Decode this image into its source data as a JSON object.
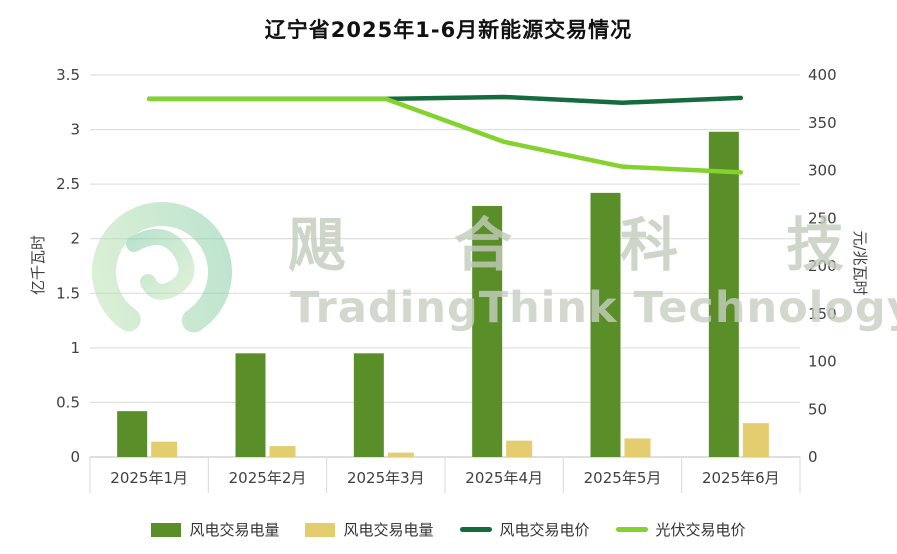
{
  "page": {
    "background": "#ffffff"
  },
  "chart_data": {
    "type": "combo",
    "title": "辽宁省2025年1-6月新能源交易情况",
    "categories": [
      "2025年1月",
      "2025年2月",
      "2025年3月",
      "2025年4月",
      "2025年5月",
      "2025年6月"
    ],
    "left_axis": {
      "label": "亿千瓦时",
      "min": 0,
      "max": 3.5,
      "ticks": [
        "0",
        "0.5",
        "1",
        "1.5",
        "2",
        "2.5",
        "3",
        "3.5"
      ]
    },
    "right_axis": {
      "label": "元/兆瓦时",
      "min": 0,
      "max": 400,
      "ticks": [
        "0",
        "50",
        "100",
        "150",
        "200",
        "250",
        "300",
        "350",
        "400"
      ]
    },
    "series": [
      {
        "name": "风电交易电量",
        "type": "bar",
        "axis": "left",
        "color": "#5a8e29",
        "values": [
          0.42,
          0.95,
          0.95,
          2.3,
          2.42,
          2.98
        ]
      },
      {
        "name": "风电交易电量",
        "type": "bar",
        "axis": "left",
        "color": "#e3cd6e",
        "values": [
          0.14,
          0.1,
          0.04,
          0.15,
          0.17,
          0.31
        ]
      },
      {
        "name": "风电交易电价",
        "type": "line",
        "axis": "right",
        "color": "#156b3d",
        "values": [
          375,
          375,
          375,
          377,
          371,
          376
        ]
      },
      {
        "name": "光伏交易电价",
        "type": "line",
        "axis": "right",
        "color": "#83d22d",
        "values": [
          375,
          375,
          375,
          330,
          304,
          298
        ]
      }
    ],
    "grid": "horizontal",
    "gridline_color": "#d9d9d9",
    "legend_position": "bottom"
  },
  "watermark": {
    "cn": "飓合科技",
    "en": "TradingThink Technology",
    "color": "#c3ccbc"
  }
}
